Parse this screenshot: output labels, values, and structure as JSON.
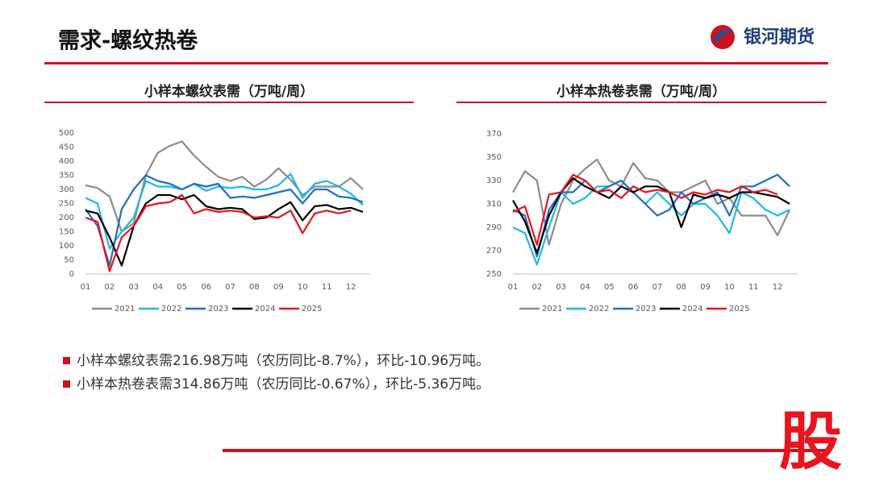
{
  "header": {
    "title": "需求-螺纹热卷",
    "logo": "银河期货"
  },
  "chart_data": [
    {
      "type": "line",
      "title": "小样本螺纹表需（万吨/周）",
      "x": [
        1,
        1.5,
        2,
        2.5,
        3,
        3.5,
        4,
        4.5,
        5,
        5.5,
        6,
        6.5,
        7,
        7.5,
        8,
        8.5,
        9,
        9.5,
        10,
        10.5,
        11,
        11.5,
        12,
        12.5
      ],
      "xlim": [
        1,
        12.8
      ],
      "xticks": [
        {
          "value": 1,
          "label": "01"
        },
        {
          "value": 2,
          "label": "02"
        },
        {
          "value": 3,
          "label": "03"
        },
        {
          "value": 4,
          "label": "04"
        },
        {
          "value": 5,
          "label": "05"
        },
        {
          "value": 6,
          "label": "06"
        },
        {
          "value": 7,
          "label": "07"
        },
        {
          "value": 8,
          "label": "08"
        },
        {
          "value": 9,
          "label": "09"
        },
        {
          "value": 10,
          "label": "10"
        },
        {
          "value": 11,
          "label": "11"
        },
        {
          "value": 12,
          "label": "12"
        }
      ],
      "ylim": [
        0,
        500
      ],
      "yticks": [
        0,
        50,
        100,
        150,
        200,
        250,
        300,
        350,
        400,
        450,
        500
      ],
      "series": [
        {
          "name": "2021",
          "color": "#8c8c8c",
          "values": [
            315,
            305,
            275,
            150,
            180,
            350,
            430,
            455,
            470,
            420,
            380,
            345,
            330,
            345,
            310,
            335,
            375,
            335,
            280,
            310,
            310,
            310,
            340,
            300
          ]
        },
        {
          "name": "2022",
          "color": "#1fb8e8",
          "values": [
            270,
            250,
            90,
            150,
            200,
            330,
            310,
            310,
            300,
            320,
            295,
            310,
            305,
            310,
            300,
            300,
            315,
            355,
            270,
            320,
            330,
            310,
            285,
            245
          ]
        },
        {
          "name": "2023",
          "color": "#1f6fbf",
          "values": [
            230,
            170,
            30,
            230,
            300,
            350,
            330,
            320,
            300,
            320,
            310,
            320,
            270,
            275,
            270,
            280,
            290,
            300,
            250,
            300,
            300,
            275,
            270,
            255
          ]
        },
        {
          "name": "2024",
          "color": "#000000",
          "values": [
            225,
            215,
            130,
            30,
            170,
            250,
            280,
            280,
            265,
            280,
            240,
            230,
            235,
            230,
            195,
            200,
            230,
            255,
            190,
            240,
            245,
            230,
            235,
            220
          ]
        },
        {
          "name": "2025",
          "color": "#e8141e",
          "values": [
            200,
            185,
            10,
            130,
            170,
            240,
            250,
            255,
            280,
            215,
            230,
            220,
            225,
            220,
            200,
            205,
            200,
            225,
            145,
            215,
            225,
            215,
            225,
            null
          ]
        }
      ]
    },
    {
      "type": "line",
      "title": "小样本热卷表需（万吨/周）",
      "x": [
        1,
        1.5,
        2,
        2.5,
        3,
        3.5,
        4,
        4.5,
        5,
        5.5,
        6,
        6.5,
        7,
        7.5,
        8,
        8.5,
        9,
        9.5,
        10,
        10.5,
        11,
        11.5,
        12,
        12.5
      ],
      "xlim": [
        1,
        12.8
      ],
      "xticks": [
        {
          "value": 1,
          "label": "01"
        },
        {
          "value": 2,
          "label": "02"
        },
        {
          "value": 3,
          "label": "03"
        },
        {
          "value": 4,
          "label": "04"
        },
        {
          "value": 5,
          "label": "05"
        },
        {
          "value": 6,
          "label": "06"
        },
        {
          "value": 7,
          "label": "07"
        },
        {
          "value": 8,
          "label": "08"
        },
        {
          "value": 9,
          "label": "09"
        },
        {
          "value": 10,
          "label": "10"
        },
        {
          "value": 11,
          "label": "11"
        },
        {
          "value": 12,
          "label": "12"
        }
      ],
      "ylim": [
        250,
        370
      ],
      "yticks": [
        250,
        270,
        290,
        310,
        330,
        350,
        370
      ],
      "series": [
        {
          "name": "2021",
          "color": "#8c8c8c",
          "values": [
            320,
            338,
            330,
            275,
            310,
            330,
            340,
            348,
            330,
            325,
            345,
            332,
            330,
            320,
            320,
            325,
            330,
            310,
            315,
            300,
            300,
            300,
            283,
            305
          ]
        },
        {
          "name": "2022",
          "color": "#1fb8e8",
          "values": [
            290,
            285,
            258,
            290,
            320,
            310,
            315,
            325,
            325,
            330,
            320,
            310,
            320,
            310,
            300,
            310,
            310,
            300,
            285,
            320,
            315,
            305,
            300,
            305
          ]
        },
        {
          "name": "2023",
          "color": "#1f6fbf",
          "values": [
            305,
            300,
            265,
            305,
            320,
            320,
            330,
            320,
            325,
            330,
            320,
            310,
            300,
            305,
            320,
            310,
            315,
            320,
            300,
            325,
            325,
            330,
            335,
            325
          ]
        },
        {
          "name": "2024",
          "color": "#000000",
          "values": [
            313,
            295,
            268,
            300,
            320,
            332,
            325,
            320,
            315,
            325,
            320,
            325,
            325,
            320,
            290,
            318,
            315,
            318,
            315,
            320,
            320,
            318,
            316,
            310
          ]
        },
        {
          "name": "2025",
          "color": "#e8141e",
          "values": [
            303,
            308,
            275,
            318,
            320,
            335,
            330,
            320,
            322,
            315,
            325,
            320,
            322,
            320,
            315,
            320,
            318,
            322,
            320,
            325,
            320,
            322,
            318,
            null
          ]
        }
      ]
    }
  ],
  "notes": [
    "小样本螺纹表需216.98万吨（农历同比-8.7%），环比-10.96万吨。",
    "小样本热卷表需314.86万吨（农历同比-0.67%），环比-5.36万吨。"
  ],
  "watermark": "股"
}
